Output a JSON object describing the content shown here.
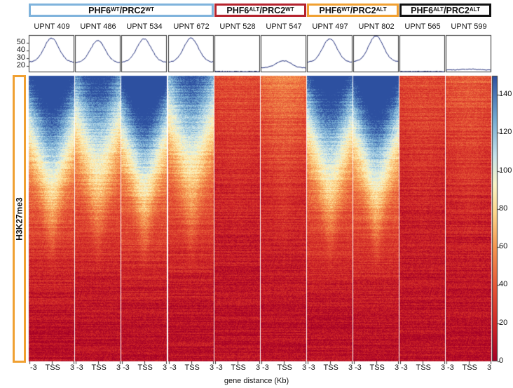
{
  "chart_data": {
    "type": "heatmap",
    "groups": [
      {
        "base": "PHF6",
        "sup1": "WT",
        "mid": "/PRC2",
        "sup2": "WT",
        "color": "#7fb3dc",
        "samples": [
          0,
          1,
          2,
          3
        ]
      },
      {
        "base": "PHF6",
        "sup1": "ALT",
        "mid": "/PRC2",
        "sup2": "WT",
        "color": "#b5222c",
        "samples": [
          4,
          5
        ]
      },
      {
        "base": "PHF6",
        "sup1": "WT",
        "mid": "/PRC2",
        "sup2": "ALT",
        "color": "#f0a032",
        "samples": [
          6,
          7
        ]
      },
      {
        "base": "PHF6",
        "sup1": "ALT",
        "mid": "/PRC2",
        "sup2": "ALT",
        "color": "#111111",
        "samples": [
          8,
          9
        ]
      }
    ],
    "samples": [
      "UPNT 409",
      "UPNT 486",
      "UPNT 534",
      "UPNT 672",
      "UPNT 528",
      "UPNT 547",
      "UPNT 497",
      "UPNT 802",
      "UPNT 565",
      "UPNT 599"
    ],
    "profile_peaks": [
      56,
      53,
      55,
      56,
      13,
      27,
      55,
      59,
      13,
      16
    ],
    "heatmap_intensity": [
      0.95,
      0.8,
      1.0,
      0.75,
      0.08,
      0.18,
      0.9,
      1.0,
      0.08,
      0.12
    ],
    "profile_yticks": [
      "50",
      "40",
      "30",
      "20"
    ],
    "profile_ylim": [
      12,
      60
    ],
    "colorbar_ticks": [
      "140",
      "120",
      "100",
      "80",
      "60",
      "40",
      "20",
      "0"
    ],
    "colorbar_range": [
      0,
      150
    ],
    "x_ticks": [
      "-3",
      "TSS",
      "3"
    ],
    "xlabel": "gene distance (Kb)",
    "row_label": "H3K27me3",
    "row_label_color": "#f0a032"
  }
}
